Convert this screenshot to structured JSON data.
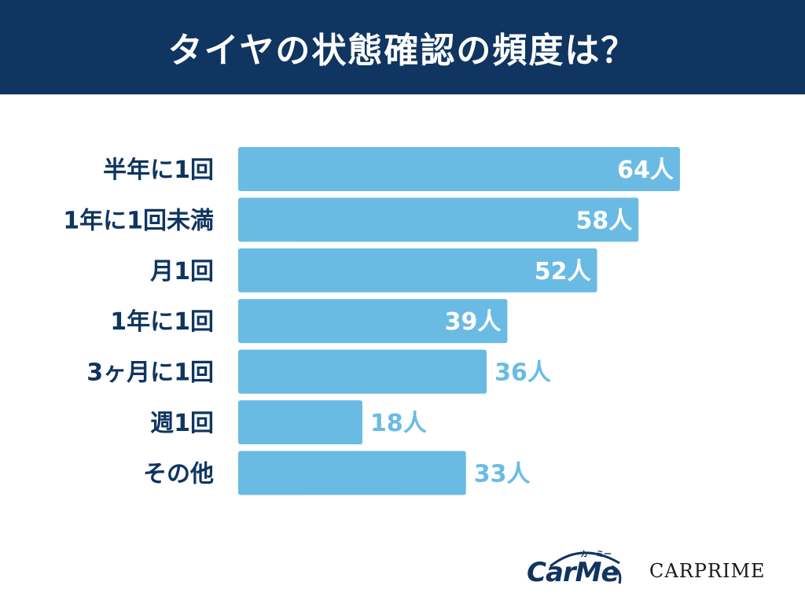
{
  "colors": {
    "header_bg": "#0f3560",
    "bar": "#6abbe4",
    "label_dark": "#0f3560",
    "value_inside": "#ffffff",
    "value_outside": "#6abbe4"
  },
  "chart_data": {
    "type": "bar",
    "orientation": "horizontal",
    "title": "タイヤの状態確認の頻度は？",
    "categories": [
      "半年に1回",
      "1年に1回未満",
      "月1回",
      "1年に1回",
      "3ヶ月に1回",
      "週1回",
      "その他"
    ],
    "values": [
      64,
      58,
      52,
      39,
      36,
      18,
      33
    ],
    "value_labels": [
      "64人",
      "58人",
      "52人",
      "39人",
      "36人",
      "18人",
      "33人"
    ],
    "unit": "人",
    "grid": false,
    "legend": "none"
  },
  "logos": {
    "carme": "CarMe",
    "carme_kana": "カーミー",
    "carprime": "CARPRIME"
  }
}
